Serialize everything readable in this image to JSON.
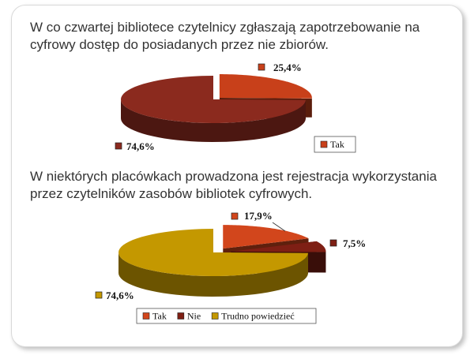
{
  "slide": {
    "title1": "W co czwartej bibliotece czytelnicy zgłaszają zapotrzebowanie na cyfrowy dostęp do posiadanych przez nie zbiorów.",
    "title2": "W niektórych placówkach prowadzona jest rejestracja wykorzystania przez czytelników zasobów bibliotek cyfrowych."
  },
  "chart_data": [
    {
      "type": "pie",
      "style": "3d-exploded",
      "categories": [
        "Tak",
        ""
      ],
      "values": [
        25.4,
        74.6
      ],
      "labels": [
        "25,4%",
        "74,6%"
      ],
      "colors": [
        "#c8401a",
        "#8b2a1e"
      ],
      "legend": {
        "entries": [
          "Tak"
        ],
        "position": "bottom-right"
      }
    },
    {
      "type": "pie",
      "style": "3d-exploded",
      "categories": [
        "Tak",
        "Nie",
        "Trudno powiedzieć"
      ],
      "values": [
        17.9,
        7.5,
        74.6
      ],
      "labels": [
        "17,9%",
        "7,5%",
        "74,6%"
      ],
      "colors": [
        "#d2461c",
        "#7e1f14",
        "#c49800"
      ],
      "legend": {
        "entries": [
          "Tak",
          "Nie",
          "Trudno powiedzieć"
        ],
        "position": "bottom"
      }
    }
  ]
}
